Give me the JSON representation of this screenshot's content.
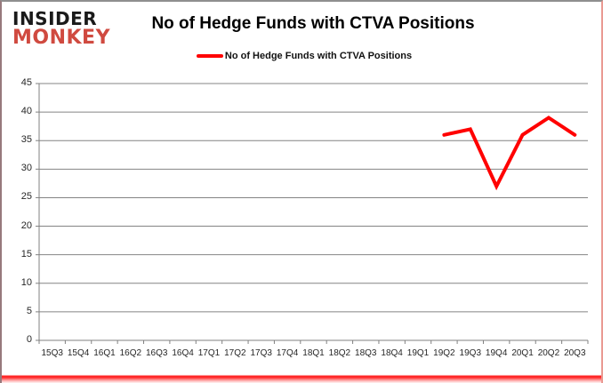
{
  "logo": {
    "line1": "INSIDER",
    "line2": "MONKEY"
  },
  "title": "No of Hedge Funds with CTVA Positions",
  "legend": {
    "label": "No of Hedge Funds with CTVA Positions",
    "swatch_color": "#ff0000"
  },
  "colors": {
    "series_red": "#ff0000",
    "gridline_gray": "#848484",
    "axis_gray": "#808080",
    "logo_red": "#d04a40",
    "tick_text": "#262626"
  },
  "chart_data": {
    "type": "line",
    "title": "No of Hedge Funds with CTVA Positions",
    "categories": [
      "15Q3",
      "15Q4",
      "16Q1",
      "16Q2",
      "16Q3",
      "16Q4",
      "17Q1",
      "17Q2",
      "17Q3",
      "17Q4",
      "18Q1",
      "18Q2",
      "18Q3",
      "18Q4",
      "19Q1",
      "19Q2",
      "19Q3",
      "19Q4",
      "20Q1",
      "20Q2",
      "20Q3"
    ],
    "series": [
      {
        "name": "No of Hedge Funds with CTVA Positions",
        "color": "#ff0000",
        "values": [
          null,
          null,
          null,
          null,
          null,
          null,
          null,
          null,
          null,
          null,
          null,
          null,
          null,
          null,
          null,
          36,
          37,
          27,
          36,
          39,
          36
        ]
      }
    ],
    "xlabel": "",
    "ylabel": "",
    "ylim": [
      0,
      45
    ],
    "ytick_step": 5,
    "grid": true,
    "legend_position": "top"
  }
}
